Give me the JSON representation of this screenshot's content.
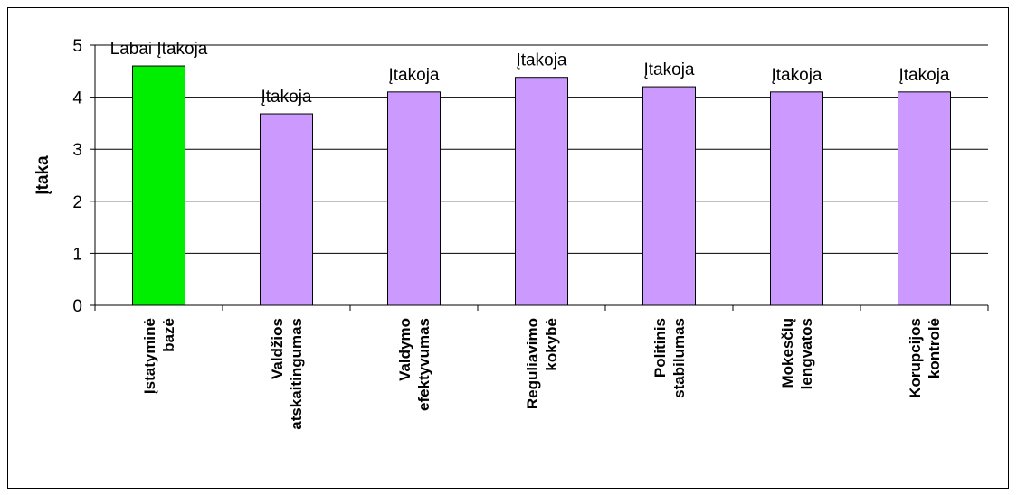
{
  "chart_data": {
    "type": "bar",
    "title": "",
    "xlabel": "",
    "ylabel": "Įtaka",
    "ylim": [
      0,
      5
    ],
    "yticks": [
      "0",
      "1",
      "2",
      "3",
      "4",
      "5"
    ],
    "grid": true,
    "legend": "none",
    "categories": [
      [
        "Įstatyminė",
        "bazė"
      ],
      [
        "Valdžios",
        "atskaitingumas"
      ],
      [
        "Valdymo",
        "efektyvumas"
      ],
      [
        "Reguliavimo",
        "kokybė"
      ],
      [
        "Politinis",
        "stabilumas"
      ],
      [
        "Mokesčių",
        "lengvatos"
      ],
      [
        "Korupcijos",
        "kontrolė"
      ]
    ],
    "values": [
      4.6,
      3.68,
      4.1,
      4.38,
      4.2,
      4.1,
      4.1
    ],
    "data_labels": [
      "Labai Įtakoja",
      "Įtakoja",
      "Įtakoja",
      "Įtakoja",
      "Įtakoja",
      "Įtakoja",
      "Įtakoja"
    ],
    "colors": [
      "#00ee00",
      "#cc99ff",
      "#cc99ff",
      "#cc99ff",
      "#cc99ff",
      "#cc99ff",
      "#cc99ff"
    ],
    "bar_stroke": "#000000"
  }
}
